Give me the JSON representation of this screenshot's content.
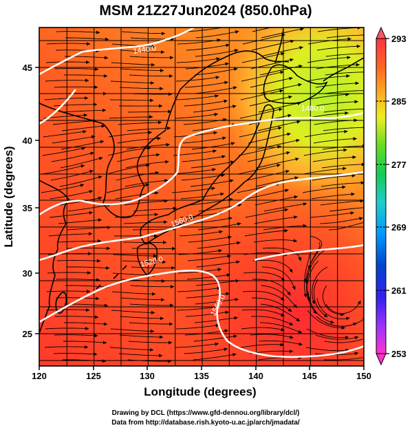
{
  "title": "MSM 21Z27Jun2024 (850.0hPa)",
  "x_axis": {
    "label": "Longitude (degrees)",
    "ticks": [
      "120",
      "125",
      "130",
      "135",
      "140",
      "145",
      "150"
    ]
  },
  "y_axis": {
    "label": "Latitude  (degrees)",
    "ticks": [
      "25",
      "30",
      "35",
      "40",
      "45"
    ]
  },
  "colorbar": {
    "ticks": [
      "293",
      "285",
      "277",
      "269",
      "261",
      "253"
    ],
    "min": 253,
    "max": 293,
    "colors": [
      "#ff33cc",
      "#cc33ff",
      "#6633ff",
      "#0033cc",
      "#0099ff",
      "#33cccc",
      "#00cc66",
      "#33cc33",
      "#99dd22",
      "#ddee22",
      "#ffcc33",
      "#ff9922",
      "#ff6622",
      "#ff3322",
      "#ff3344"
    ]
  },
  "contour_labels": [
    "1440.0",
    "1480.0",
    "1520.0",
    "1560.0",
    "1560.0"
  ],
  "credits": [
    "Drawing by DCL (https://www.gfd-dennou.org/library/dcl/)",
    "Data from http://database.rish.kyoto-u.ac.jp/arch/jmadata/"
  ]
}
